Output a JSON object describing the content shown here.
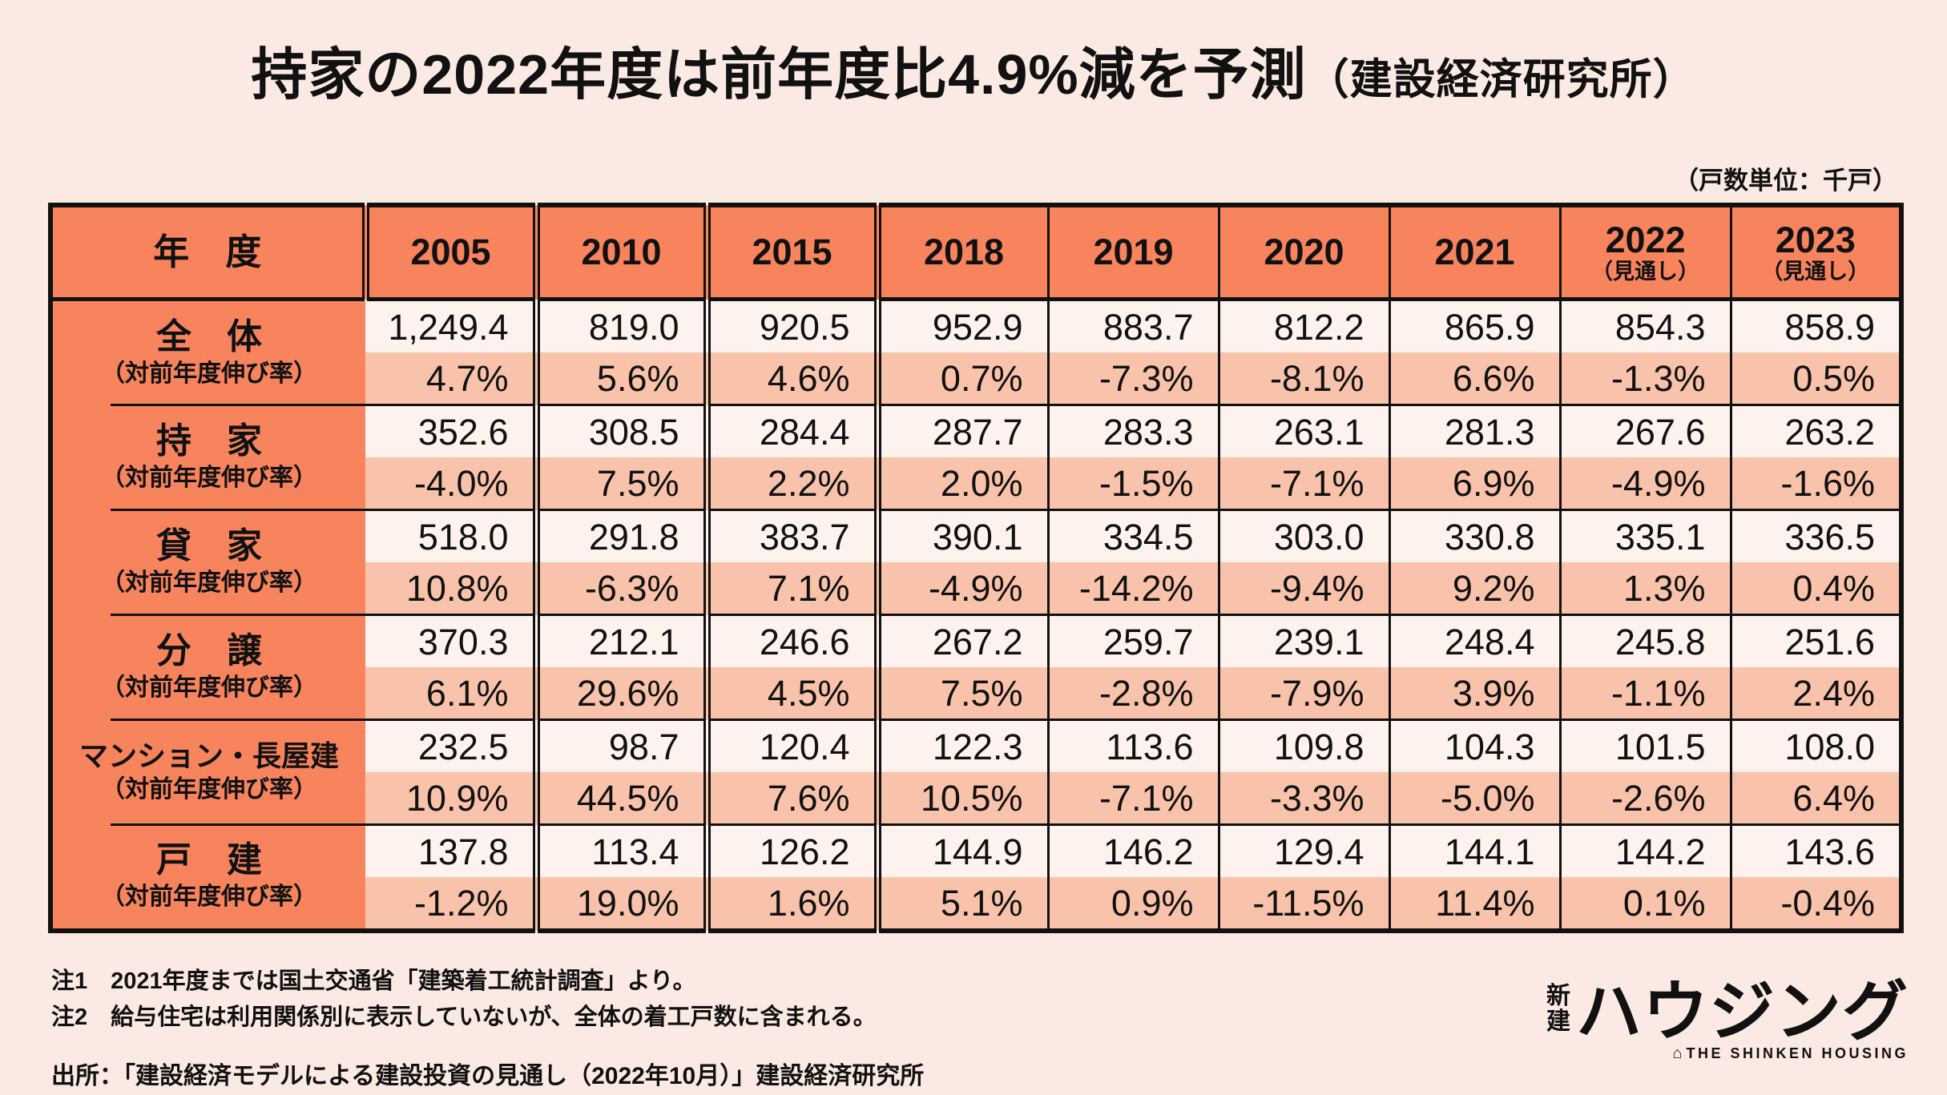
{
  "page": {
    "title": "持家の2022年度は前年度比4.9%減を予測",
    "title_suffix": "（建設経済研究所）",
    "unit_note": "（戸数単位：千戸）"
  },
  "colors": {
    "background": "#fbe9e3",
    "accent_orange": "#f8845e",
    "value_row_bg": "#fdf2ed",
    "rate_row_bg": "#f9c3ab",
    "border": "#111111"
  },
  "table": {
    "header": {
      "label": "年　度",
      "years": [
        {
          "label": "2005",
          "note": ""
        },
        {
          "label": "2010",
          "note": ""
        },
        {
          "label": "2015",
          "note": ""
        },
        {
          "label": "2018",
          "note": ""
        },
        {
          "label": "2019",
          "note": ""
        },
        {
          "label": "2020",
          "note": ""
        },
        {
          "label": "2021",
          "note": ""
        },
        {
          "label": "2022",
          "note": "（見通し）"
        },
        {
          "label": "2023",
          "note": "（見通し）"
        }
      ]
    },
    "rate_label": "（対前年度伸び率）"
  },
  "chart_data": {
    "type": "table",
    "title": "持家の2022年度は前年度比4.9%減を予測（建設経済研究所）",
    "unit": "千戸",
    "columns": [
      "2005",
      "2010",
      "2015",
      "2018",
      "2019",
      "2020",
      "2021",
      "2022（見通し）",
      "2023（見通し）"
    ],
    "rows": [
      {
        "name": "全　体",
        "values": [
          "1,249.4",
          "819.0",
          "920.5",
          "952.9",
          "883.7",
          "812.2",
          "865.9",
          "854.3",
          "858.9"
        ],
        "yoy_pct": [
          "4.7%",
          "5.6%",
          "4.6%",
          "0.7%",
          "-7.3%",
          "-8.1%",
          "6.6%",
          "-1.3%",
          "0.5%"
        ]
      },
      {
        "name": "持　家",
        "values": [
          "352.6",
          "308.5",
          "284.4",
          "287.7",
          "283.3",
          "263.1",
          "281.3",
          "267.6",
          "263.2"
        ],
        "yoy_pct": [
          "-4.0%",
          "7.5%",
          "2.2%",
          "2.0%",
          "-1.5%",
          "-7.1%",
          "6.9%",
          "-4.9%",
          "-1.6%"
        ]
      },
      {
        "name": "貸　家",
        "values": [
          "518.0",
          "291.8",
          "383.7",
          "390.1",
          "334.5",
          "303.0",
          "330.8",
          "335.1",
          "336.5"
        ],
        "yoy_pct": [
          "10.8%",
          "-6.3%",
          "7.1%",
          "-4.9%",
          "-14.2%",
          "-9.4%",
          "9.2%",
          "1.3%",
          "0.4%"
        ]
      },
      {
        "name": "分　譲",
        "values": [
          "370.3",
          "212.1",
          "246.6",
          "267.2",
          "259.7",
          "239.1",
          "248.4",
          "245.8",
          "251.6"
        ],
        "yoy_pct": [
          "6.1%",
          "29.6%",
          "4.5%",
          "7.5%",
          "-2.8%",
          "-7.9%",
          "3.9%",
          "-1.1%",
          "2.4%"
        ]
      },
      {
        "name": "マンション・長屋建",
        "values": [
          "232.5",
          "98.7",
          "120.4",
          "122.3",
          "113.6",
          "109.8",
          "104.3",
          "101.5",
          "108.0"
        ],
        "yoy_pct": [
          "10.9%",
          "44.5%",
          "7.6%",
          "10.5%",
          "-7.1%",
          "-3.3%",
          "-5.0%",
          "-2.6%",
          "6.4%"
        ]
      },
      {
        "name": "戸　建",
        "values": [
          "137.8",
          "113.4",
          "126.2",
          "144.9",
          "146.2",
          "129.4",
          "144.1",
          "144.2",
          "143.6"
        ],
        "yoy_pct": [
          "-1.2%",
          "19.0%",
          "1.6%",
          "5.1%",
          "0.9%",
          "-11.5%",
          "11.4%",
          "0.1%",
          "-0.4%"
        ]
      }
    ]
  },
  "notes": {
    "note1": "注1　2021年度までは国土交通省「建築着工統計調査」より。",
    "note2": "注2　給与住宅は利用関係別に表示していないが、全体の着工戸数に含まれる。",
    "source": "出所：「建設経済モデルによる建設投資の見通し（2022年10月）」建設経済研究所"
  },
  "logo": {
    "mark_top": "新",
    "mark_bottom": "建",
    "main": "ハウジング",
    "house_icon": "⌂",
    "tagline": "THE SHINKEN HOUSING"
  }
}
